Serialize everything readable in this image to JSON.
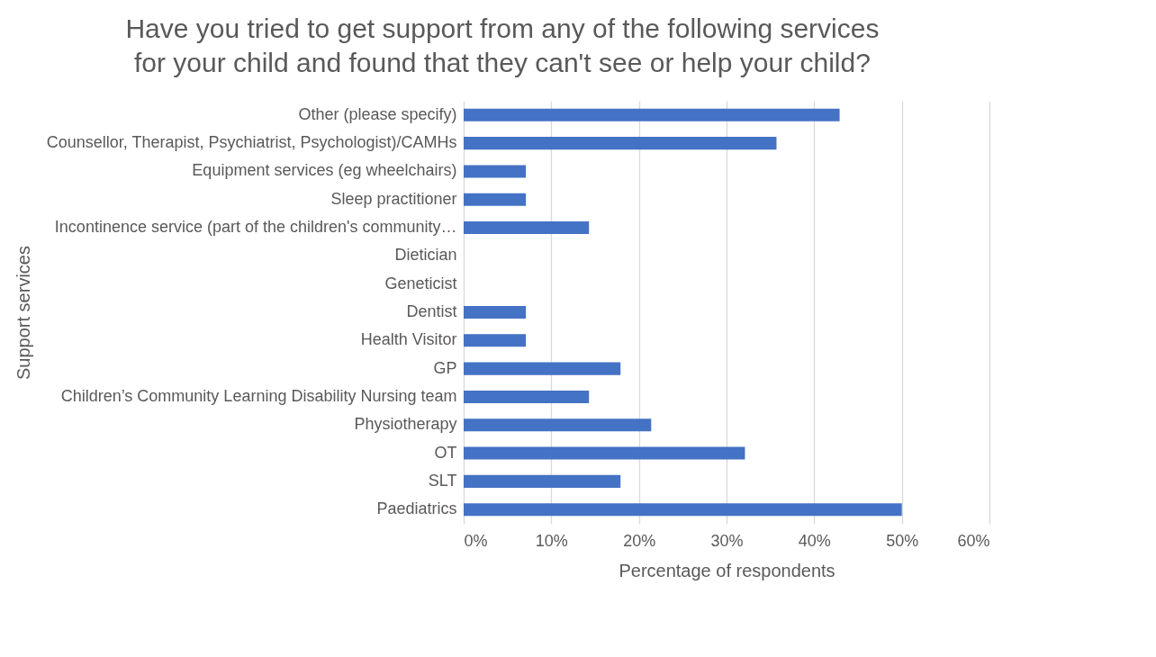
{
  "chart_data": {
    "type": "bar",
    "orientation": "horizontal",
    "title": "Have you tried to get support from any of the following services\nfor your child and found that they can't see or help your child?",
    "xlabel": "Percentage of respondents",
    "ylabel": "Support services",
    "categories": [
      "Other (please specify)",
      "Counsellor, Therapist, Psychiatrist, Psychologist)/CAMHs",
      "Equipment services (eg wheelchairs)",
      "Sleep practitioner",
      "Incontinence service (part of the children's community…",
      "Dietician",
      "Geneticist",
      "Dentist",
      "Health Visitor",
      "GP",
      "Children’s Community Learning Disability Nursing team",
      "Physiotherapy",
      "OT",
      "SLT",
      "Paediatrics"
    ],
    "values": [
      42.9,
      35.7,
      7.1,
      7.1,
      14.3,
      0,
      0,
      7.1,
      7.1,
      17.9,
      14.3,
      21.4,
      32.1,
      17.9,
      50
    ],
    "color": "#4472c4",
    "xlim": [
      0,
      60
    ],
    "xticks": [
      {
        "value": 0,
        "label": "0%"
      },
      {
        "value": 10,
        "label": "10%"
      },
      {
        "value": 20,
        "label": "20%"
      },
      {
        "value": 30,
        "label": "30%"
      },
      {
        "value": 40,
        "label": "40%"
      },
      {
        "value": 50,
        "label": "50%"
      },
      {
        "value": 60,
        "label": "60%"
      }
    ],
    "grid": "x"
  }
}
